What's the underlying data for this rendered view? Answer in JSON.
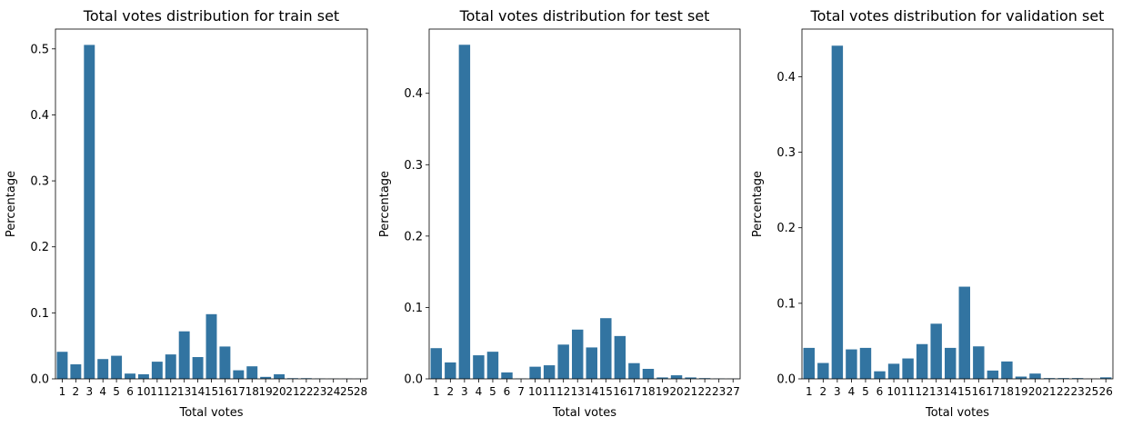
{
  "chart_data": [
    {
      "type": "bar",
      "title": "Total votes distribution for train set",
      "xlabel": "Total votes",
      "ylabel": "Percentage",
      "color": "#3274a1",
      "ylim": [
        0,
        0.53
      ],
      "yticks": [
        0.0,
        0.1,
        0.2,
        0.3,
        0.4,
        0.5
      ],
      "yticklabels": [
        "0.0",
        "0.1",
        "0.2",
        "0.3",
        "0.4",
        "0.5"
      ],
      "categories": [
        "1",
        "2",
        "3",
        "4",
        "5",
        "6",
        "10",
        "11",
        "12",
        "13",
        "14",
        "15",
        "16",
        "17",
        "18",
        "19",
        "20",
        "21",
        "22",
        "23",
        "24",
        "25",
        "28"
      ],
      "values": [
        0.041,
        0.022,
        0.506,
        0.03,
        0.035,
        0.008,
        0.007,
        0.026,
        0.037,
        0.072,
        0.033,
        0.098,
        0.049,
        0.013,
        0.019,
        0.003,
        0.007,
        0.001,
        0.001,
        0.0005,
        0.0003,
        0.0003,
        0.0002
      ]
    },
    {
      "type": "bar",
      "title": "Total votes distribution for test set",
      "xlabel": "Total votes",
      "ylabel": "Percentage",
      "color": "#3274a1",
      "ylim": [
        0,
        0.49
      ],
      "yticks": [
        0.0,
        0.1,
        0.2,
        0.3,
        0.4
      ],
      "yticklabels": [
        "0.0",
        "0.1",
        "0.2",
        "0.3",
        "0.4"
      ],
      "categories": [
        "1",
        "2",
        "3",
        "4",
        "5",
        "6",
        "7",
        "10",
        "11",
        "12",
        "13",
        "14",
        "15",
        "16",
        "17",
        "18",
        "19",
        "20",
        "21",
        "22",
        "23",
        "27"
      ],
      "values": [
        0.043,
        0.023,
        0.468,
        0.033,
        0.038,
        0.009,
        0.0005,
        0.017,
        0.019,
        0.048,
        0.069,
        0.044,
        0.085,
        0.06,
        0.022,
        0.014,
        0.002,
        0.005,
        0.002,
        0.001,
        0.0005,
        0.0003
      ]
    },
    {
      "type": "bar",
      "title": "Total votes distribution for validation set",
      "xlabel": "Total votes",
      "ylabel": "Percentage",
      "color": "#3274a1",
      "ylim": [
        0,
        0.463
      ],
      "yticks": [
        0.0,
        0.1,
        0.2,
        0.3,
        0.4
      ],
      "yticklabels": [
        "0.0",
        "0.1",
        "0.2",
        "0.3",
        "0.4"
      ],
      "categories": [
        "1",
        "2",
        "3",
        "4",
        "5",
        "6",
        "10",
        "11",
        "12",
        "13",
        "14",
        "15",
        "16",
        "17",
        "18",
        "19",
        "20",
        "21",
        "22",
        "23",
        "25",
        "26"
      ],
      "values": [
        0.041,
        0.021,
        0.441,
        0.039,
        0.041,
        0.01,
        0.02,
        0.027,
        0.046,
        0.073,
        0.041,
        0.122,
        0.043,
        0.011,
        0.023,
        0.003,
        0.007,
        0.001,
        0.001,
        0.001,
        0.0003,
        0.002
      ]
    }
  ]
}
